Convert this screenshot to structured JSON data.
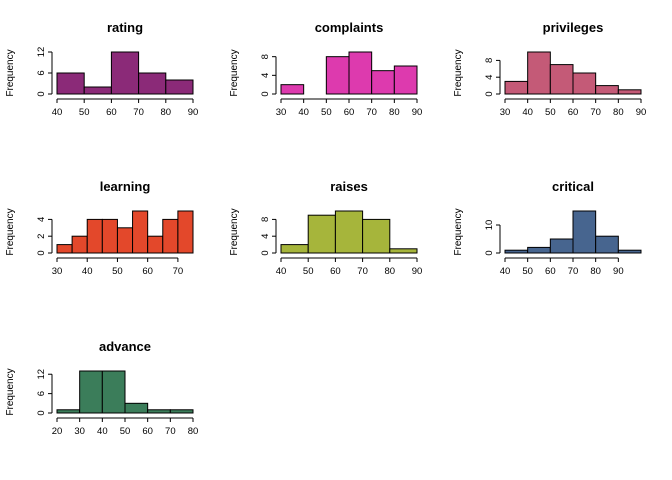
{
  "chart_data": [
    {
      "type": "bar",
      "title": "rating",
      "ylabel": "Frequency",
      "color": "#8B2A78",
      "breaks": [
        40,
        50,
        60,
        70,
        80,
        90
      ],
      "values": [
        6,
        2,
        12,
        6,
        4
      ],
      "x_ticks": [
        40,
        50,
        60,
        70,
        80,
        90
      ],
      "y_ticks": [
        0,
        6,
        12
      ],
      "ylim": [
        0,
        12
      ]
    },
    {
      "type": "bar",
      "title": "complaints",
      "ylabel": "Frequency",
      "color": "#DD3AAE",
      "breaks": [
        30,
        40,
        50,
        60,
        70,
        80,
        90
      ],
      "values": [
        2,
        0,
        8,
        9,
        5,
        6
      ],
      "x_ticks": [
        30,
        40,
        50,
        60,
        70,
        80,
        90
      ],
      "y_ticks": [
        0,
        4,
        8
      ],
      "ylim": [
        0,
        9
      ]
    },
    {
      "type": "bar",
      "title": "privileges",
      "ylabel": "Frequency",
      "color": "#C45A77",
      "breaks": [
        30,
        40,
        50,
        60,
        70,
        80,
        90
      ],
      "values": [
        3,
        10,
        7,
        5,
        2,
        1
      ],
      "x_ticks": [
        30,
        40,
        50,
        60,
        70,
        80,
        90
      ],
      "y_ticks": [
        0,
        4,
        8
      ],
      "ylim": [
        0,
        10
      ]
    },
    {
      "type": "bar",
      "title": "learning",
      "ylabel": "Frequency",
      "color": "#E3482B",
      "breaks": [
        30,
        35,
        40,
        45,
        50,
        55,
        60,
        65,
        70,
        75
      ],
      "values": [
        1,
        2,
        4,
        4,
        3,
        5,
        2,
        4,
        5
      ],
      "x_ticks": [
        30,
        40,
        50,
        60,
        70
      ],
      "y_ticks": [
        0,
        2,
        4
      ],
      "ylim": [
        0,
        5
      ]
    },
    {
      "type": "bar",
      "title": "raises",
      "ylabel": "Frequency",
      "color": "#A6B53B",
      "breaks": [
        40,
        50,
        60,
        70,
        80,
        90
      ],
      "values": [
        2,
        9,
        10,
        8,
        1
      ],
      "x_ticks": [
        40,
        50,
        60,
        70,
        80,
        90
      ],
      "y_ticks": [
        0,
        4,
        8
      ],
      "ylim": [
        0,
        10
      ]
    },
    {
      "type": "bar",
      "title": "critical",
      "ylabel": "Frequency",
      "color": "#47658F",
      "breaks": [
        40,
        50,
        60,
        70,
        80,
        90,
        100
      ],
      "values": [
        1,
        2,
        5,
        15,
        6,
        1
      ],
      "x_ticks": [
        40,
        50,
        60,
        70,
        80,
        90
      ],
      "y_ticks": [
        0,
        10
      ],
      "ylim": [
        0,
        15
      ]
    },
    {
      "type": "bar",
      "title": "advance",
      "ylabel": "Frequency",
      "color": "#3B7D5A",
      "breaks": [
        20,
        30,
        40,
        50,
        60,
        70,
        80
      ],
      "values": [
        1,
        13,
        13,
        3,
        1,
        1
      ],
      "x_ticks": [
        20,
        30,
        40,
        50,
        60,
        70,
        80
      ],
      "y_ticks": [
        0,
        6,
        12
      ],
      "ylim": [
        0,
        13
      ]
    }
  ]
}
